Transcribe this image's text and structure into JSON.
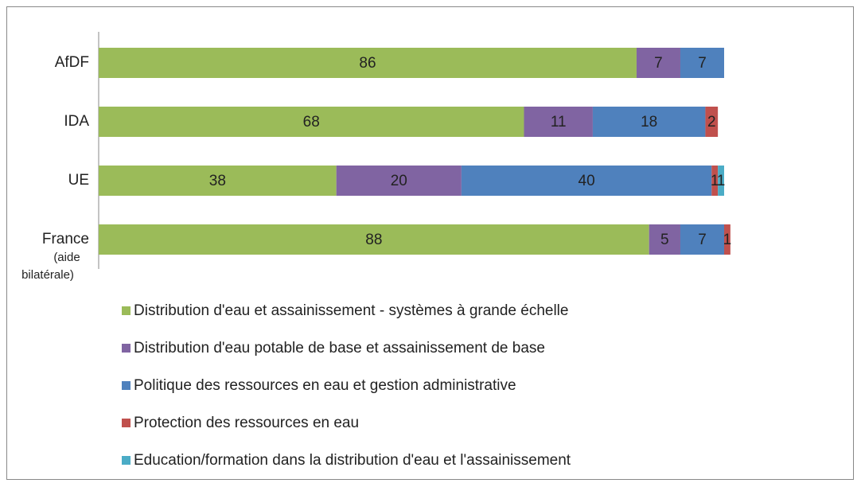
{
  "chart_data": {
    "type": "stacked-bar-horizontal",
    "categories": [
      "AfDF",
      "IDA",
      "UE",
      "France"
    ],
    "category_notes": [
      null,
      null,
      null,
      "(aide bilatérale)"
    ],
    "xlim": [
      0,
      100
    ],
    "series": [
      {
        "name": "Distribution d'eau et assainissement - systèmes à grande échelle",
        "color": "#9bbb59",
        "values": [
          86,
          68,
          38,
          88
        ]
      },
      {
        "name": "Distribution d'eau potable de base et assainissement de base",
        "color": "#8064a2",
        "values": [
          7,
          11,
          20,
          5
        ]
      },
      {
        "name": "Politique des ressources en eau et gestion administrative",
        "color": "#4f81bd",
        "values": [
          7,
          18,
          40,
          7
        ]
      },
      {
        "name": "Protection des ressources en eau",
        "color": "#c0504d",
        "values": [
          null,
          2,
          1,
          1
        ]
      },
      {
        "name": "Education/formation dans la distribution d'eau et l'assainissement",
        "color": "#4bacc6",
        "values": [
          null,
          null,
          1,
          null
        ]
      }
    ]
  }
}
